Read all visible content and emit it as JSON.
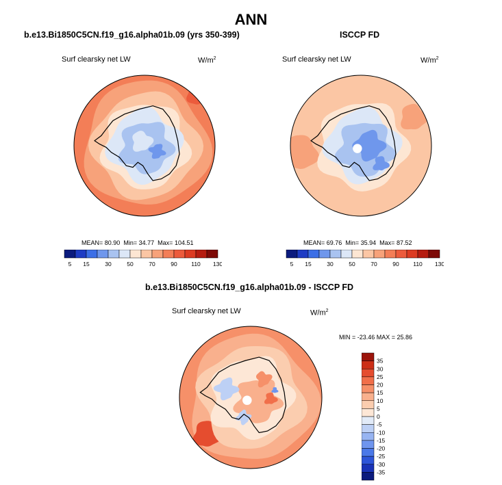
{
  "title": "ANN",
  "colors": {
    "seq_cmap": [
      "#0b1b7e",
      "#1e3cc4",
      "#3c6fe6",
      "#6f97ec",
      "#a9c3f0",
      "#dce7f7",
      "#fde6d3",
      "#fbc6a4",
      "#f7a27a",
      "#f37e57",
      "#ec5b3c",
      "#dc3b22",
      "#b51c10",
      "#7d0a07"
    ],
    "diff_cmap": [
      "#0b1b7e",
      "#1933b7",
      "#2d55d9",
      "#4a78e8",
      "#6f95ee",
      "#97b4f2",
      "#bdd0f5",
      "#e2ebf8",
      "#fde7d6",
      "#fbcdaf",
      "#f9b08d",
      "#f69069",
      "#f16f4a",
      "#e54d2f",
      "#cc2f17",
      "#9c140b"
    ]
  },
  "chart_data": [
    {
      "id": "model",
      "type": "heatmap",
      "projection": "south-polar-stereographic",
      "title": "b.e13.Bi1850C5CN.f19_g16.alpha01b.09 (yrs 350-399)",
      "variable": "Surf clearsky net LW",
      "units_base": "W/m",
      "units_exp": "2",
      "stats": {
        "mean_label": "MEAN=",
        "mean": "80.90",
        "min_label": "Min=",
        "min": "34.77",
        "max_label": "Max=",
        "max": "104.51"
      },
      "colorbar_ticks": [
        "5",
        "15",
        "30",
        "50",
        "70",
        "90",
        "110",
        "130"
      ],
      "levels": [
        5,
        10,
        15,
        20,
        30,
        40,
        50,
        60,
        70,
        80,
        90,
        100,
        110,
        120,
        130
      ]
    },
    {
      "id": "obs",
      "type": "heatmap",
      "projection": "south-polar-stereographic",
      "title": "ISCCP FD",
      "variable": "Surf clearsky net LW",
      "units_base": "W/m",
      "units_exp": "2",
      "stats": {
        "mean_label": "MEAN=",
        "mean": "69.76",
        "min_label": "Min=",
        "min": "35.94",
        "max_label": "Max=",
        "max": "87.52"
      },
      "colorbar_ticks": [
        "5",
        "15",
        "30",
        "50",
        "70",
        "90",
        "110",
        "130"
      ],
      "levels": [
        5,
        10,
        15,
        20,
        30,
        40,
        50,
        60,
        70,
        80,
        90,
        100,
        110,
        120,
        130
      ]
    },
    {
      "id": "diff",
      "type": "heatmap",
      "projection": "south-polar-stereographic",
      "title": "b.e13.Bi1850C5CN.f19_g16.alpha01b.09 - ISCCP FD",
      "variable": "Surf clearsky net LW",
      "units_base": "W/m",
      "units_exp": "2",
      "range_text": "MIN = -23.46 MAX =  25.86",
      "colorbar_ticks": [
        "35",
        "30",
        "25",
        "20",
        "15",
        "10",
        "5",
        "0",
        "-5",
        "-10",
        "-15",
        "-20",
        "-25",
        "-30",
        "-35"
      ],
      "levels": [
        -35,
        -30,
        -25,
        -20,
        -15,
        -10,
        -5,
        0,
        5,
        10,
        15,
        20,
        25,
        30,
        35
      ]
    }
  ]
}
